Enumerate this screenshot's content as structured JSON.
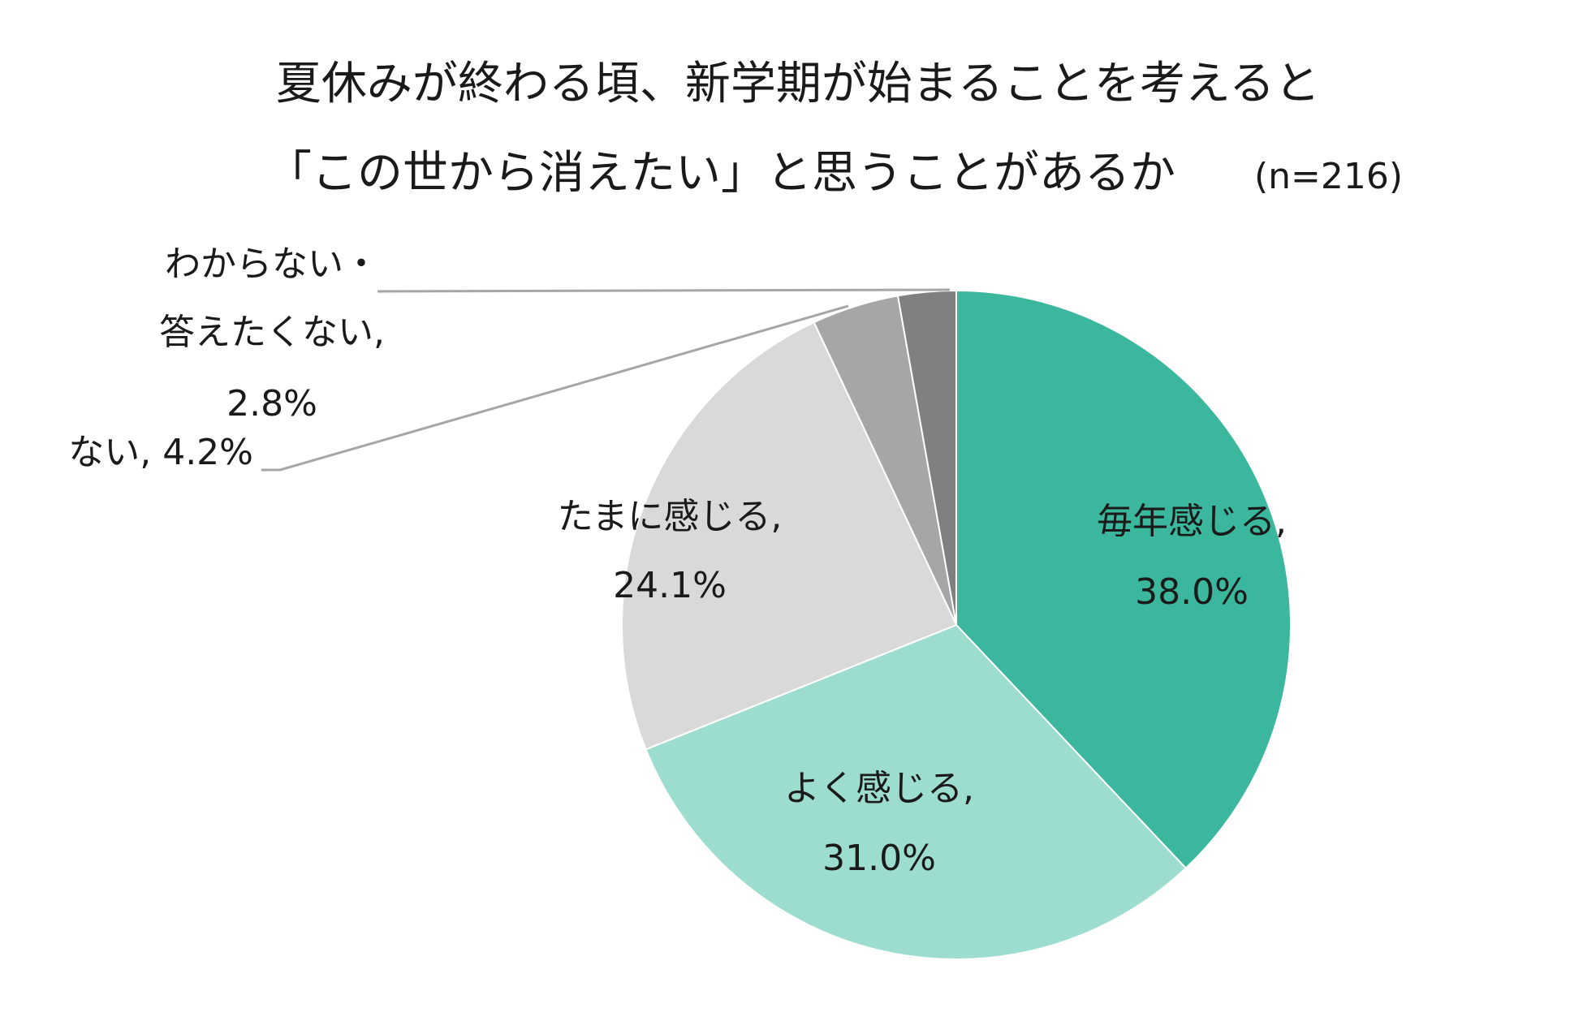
{
  "chart_data": {
    "type": "pie",
    "title_line1": "夏休みが終わる頃、新学期が始まることを考えると",
    "title_line2": "「この世から消えたい」と思うことがあるか",
    "title_note": "(n=216)",
    "slices": [
      {
        "label": "毎年感じる,",
        "percent_text": "38.0%",
        "value": 38.0,
        "color": "#3bb79d"
      },
      {
        "label": "よく感じる,",
        "percent_text": "31.0%",
        "value": 31.0,
        "color": "#9dddcf"
      },
      {
        "label": "たまに感じる,",
        "percent_text": "24.1%",
        "value": 24.1,
        "color": "#d9d9d9"
      },
      {
        "label": "ない, 4.2%",
        "percent_text": "",
        "value": 4.2,
        "color": "#a6a6a6"
      },
      {
        "label": "わからない・",
        "label_line2": "答えたくない,",
        "percent_text": "2.8%",
        "value": 2.8,
        "color": "#808080"
      }
    ]
  }
}
